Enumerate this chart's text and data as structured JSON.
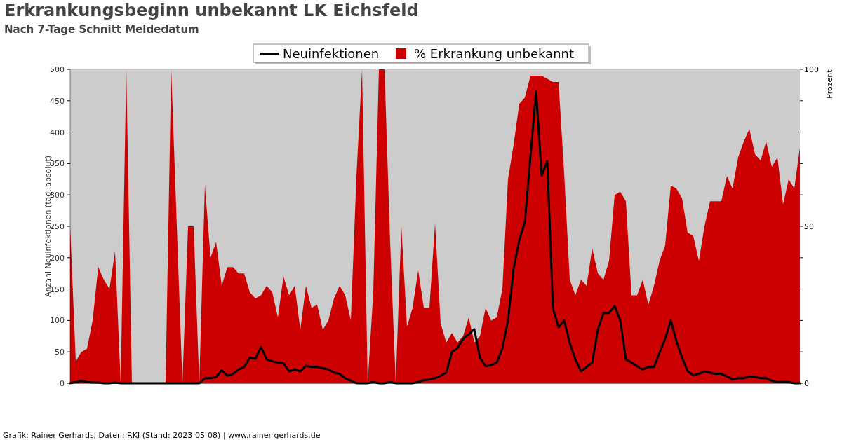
{
  "chart_data": {
    "type": "line",
    "title": "Erkrankungsbeginn unbekannt LK Eichsfeld",
    "subtitle": "Nach 7-Tage Schnitt Meldedatum",
    "ylabel": "Anzahl Neuinfektionen (tag. absolut)",
    "y2label": "Prozent",
    "annotations": [
      "Grafik: Rainer Gerhards, Daten: RKI (Stand: 2023-05-08) | www.rainer-gerhards.de"
    ],
    "categories": [
      null,
      null,
      null,
      null,
      null,
      null,
      null,
      null,
      null,
      null,
      null,
      null,
      null,
      null,
      null,
      null,
      null,
      null,
      null,
      null,
      null,
      null,
      null,
      null,
      null,
      null,
      null,
      null,
      null,
      null,
      null,
      null,
      null,
      null,
      null,
      null,
      null,
      null,
      null,
      null,
      null,
      null,
      null,
      null,
      null,
      null,
      null,
      null,
      null,
      null,
      null,
      null,
      null,
      null,
      null,
      null,
      null,
      null,
      null,
      null,
      null,
      null,
      null,
      null,
      null,
      null,
      null,
      null,
      null,
      null,
      null,
      null,
      null,
      null,
      null,
      null,
      null,
      null,
      null,
      null,
      null,
      null,
      null,
      null,
      null,
      null,
      null,
      null,
      null,
      null,
      null,
      null,
      null,
      null,
      null,
      null,
      null,
      null,
      null,
      null,
      null,
      null,
      null,
      null,
      null,
      null,
      null,
      null,
      null,
      null,
      null,
      null,
      null,
      null,
      null,
      null,
      null,
      null,
      null,
      null,
      null,
      null,
      null,
      null,
      null,
      null,
      null,
      null,
      null,
      null,
      null
    ],
    "series": [
      {
        "name": "% Erkrankung unbekannt",
        "type": "area",
        "axis": "y2",
        "color": "#cc0000",
        "values": [
          50,
          7,
          10,
          11,
          20,
          37,
          33,
          30,
          42,
          0,
          100,
          0,
          0,
          0,
          0,
          0,
          0,
          0,
          100,
          50,
          0,
          50,
          50,
          0,
          63,
          40,
          45,
          31,
          37,
          37,
          35,
          35,
          29,
          27,
          28,
          31,
          29,
          21,
          34,
          28,
          31,
          17,
          31,
          24,
          25,
          17,
          20,
          27,
          31,
          28,
          20,
          66,
          100,
          0,
          29,
          100,
          100,
          45,
          0,
          50,
          18,
          24,
          36,
          24,
          24,
          51,
          19,
          13,
          16,
          13,
          15,
          21,
          13,
          15,
          24,
          20,
          21,
          30,
          65,
          76,
          89,
          91,
          98,
          98,
          98,
          97,
          96,
          96,
          67,
          33,
          28,
          33,
          31,
          43,
          35,
          33,
          39,
          60,
          61,
          58,
          28,
          28,
          33,
          25,
          31,
          39,
          44,
          63,
          62,
          59,
          48,
          47,
          39,
          50,
          58,
          58,
          58,
          66,
          62,
          72,
          77,
          81,
          73,
          71,
          77,
          69,
          72,
          57,
          65,
          62,
          75
        ]
      },
      {
        "name": "Neuinfektionen",
        "color": "#000000",
        "values": [
          0,
          2,
          4,
          2,
          1,
          1,
          0,
          0,
          1,
          0,
          0,
          0,
          0,
          0,
          0,
          0,
          0,
          0,
          0,
          0,
          0,
          0,
          0,
          0,
          8,
          8,
          10,
          21,
          12,
          15,
          22,
          26,
          41,
          39,
          58,
          38,
          35,
          33,
          32,
          19,
          22,
          19,
          28,
          26,
          26,
          24,
          22,
          17,
          15,
          8,
          4,
          0,
          0,
          0,
          2,
          0,
          0,
          2,
          0,
          0,
          0,
          0,
          2,
          5,
          6,
          8,
          12,
          17,
          50,
          56,
          71,
          78,
          86,
          41,
          27,
          29,
          33,
          56,
          100,
          183,
          228,
          257,
          362,
          465,
          331,
          354,
          119,
          89,
          100,
          64,
          38,
          19,
          26,
          33,
          86,
          112,
          112,
          123,
          100,
          38,
          33,
          27,
          22,
          26,
          26,
          49,
          71,
          100,
          67,
          41,
          19,
          13,
          15,
          19,
          17,
          15,
          15,
          11,
          6,
          8,
          8,
          11,
          10,
          8,
          8,
          4,
          2,
          2,
          2,
          0,
          0
        ]
      }
    ],
    "ylim": [
      0,
      500
    ],
    "yticks": [
      0,
      50,
      100,
      150,
      200,
      250,
      300,
      350,
      400,
      450,
      500
    ],
    "y2lim": [
      0,
      100
    ],
    "y2ticks": [
      0,
      {
        "value": 10,
        "label": null
      },
      {
        "value": 20,
        "label": null
      },
      {
        "value": 30,
        "label": null
      },
      {
        "value": 40,
        "label": null
      },
      50,
      {
        "value": 60,
        "label": null
      },
      {
        "value": 70,
        "label": null
      },
      {
        "value": 80,
        "label": null
      },
      {
        "value": 90,
        "label": null
      },
      100
    ],
    "legend": "top"
  }
}
